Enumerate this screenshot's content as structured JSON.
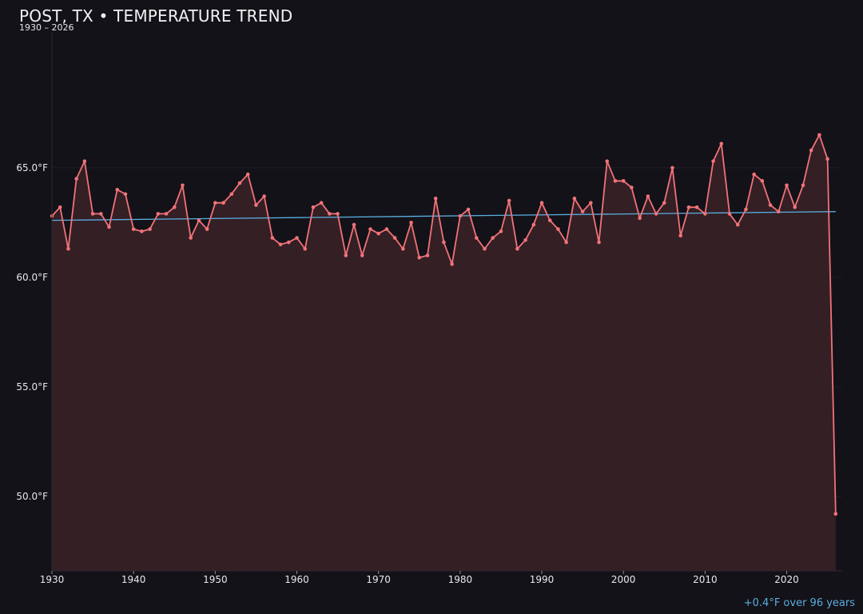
{
  "title": "POST, TX • TEMPERATURE TREND",
  "subtitle": "1930 – 2026",
  "trend_note": "+0.4°F over 96 years",
  "colors": {
    "background": "#131218",
    "series_line": "#f07378",
    "series_fill": "#341f25",
    "trend_line": "#5aaee0",
    "grid": "#221f26"
  },
  "chart_data": {
    "type": "line",
    "title": "POST, TX • TEMPERATURE TREND",
    "subtitle": "1930 – 2026",
    "xlabel": "",
    "ylabel": "",
    "xlim": [
      1930,
      2026.8
    ],
    "ylim": [
      46.6,
      71.2
    ],
    "y_ticks": [
      50.0,
      55.0,
      60.0,
      65.0
    ],
    "y_tick_labels": [
      "50.0°F",
      "55.0°F",
      "60.0°F",
      "65.0°F"
    ],
    "x_ticks": [
      1930,
      1940,
      1950,
      1960,
      1970,
      1980,
      1990,
      2000,
      2010,
      2020
    ],
    "x_tick_labels": [
      "1930",
      "1940",
      "1950",
      "1960",
      "1970",
      "1980",
      "1990",
      "2000",
      "2010",
      "2020"
    ],
    "grid": true,
    "area_fill": true,
    "x": [
      1930,
      1931,
      1932,
      1933,
      1934,
      1935,
      1936,
      1937,
      1938,
      1939,
      1940,
      1941,
      1942,
      1943,
      1944,
      1945,
      1946,
      1947,
      1948,
      1949,
      1950,
      1951,
      1952,
      1953,
      1954,
      1955,
      1956,
      1957,
      1958,
      1959,
      1960,
      1961,
      1962,
      1963,
      1964,
      1965,
      1966,
      1967,
      1968,
      1969,
      1970,
      1971,
      1972,
      1973,
      1974,
      1975,
      1976,
      1977,
      1978,
      1979,
      1980,
      1981,
      1982,
      1983,
      1984,
      1985,
      1986,
      1987,
      1988,
      1989,
      1990,
      1991,
      1992,
      1993,
      1994,
      1995,
      1996,
      1997,
      1998,
      1999,
      2000,
      2001,
      2002,
      2003,
      2004,
      2005,
      2006,
      2007,
      2008,
      2009,
      2010,
      2011,
      2012,
      2013,
      2014,
      2015,
      2016,
      2017,
      2018,
      2019,
      2020,
      2021,
      2022,
      2023,
      2024,
      2025,
      2026
    ],
    "series": [
      {
        "values": [
          62.8,
          63.2,
          61.3,
          64.5,
          65.3,
          62.9,
          62.9,
          62.3,
          64.0,
          63.8,
          62.2,
          62.1,
          62.2,
          62.9,
          62.9,
          63.2,
          64.2,
          61.8,
          62.6,
          62.2,
          63.4,
          63.4,
          63.8,
          64.3,
          64.7,
          63.3,
          63.7,
          61.8,
          61.5,
          61.6,
          61.8,
          61.3,
          63.2,
          63.4,
          62.9,
          62.9,
          61.0,
          62.4,
          61.0,
          62.2,
          62.0,
          62.2,
          61.8,
          61.3,
          62.5,
          60.9,
          61.0,
          63.6,
          61.6,
          60.6,
          62.8,
          63.1,
          61.8,
          61.3,
          61.8,
          62.1,
          63.5,
          61.3,
          61.7,
          62.4,
          63.4,
          62.6,
          62.2,
          61.6,
          63.6,
          63.0,
          63.4,
          61.6,
          65.3,
          64.4,
          64.4,
          64.1,
          62.7,
          63.7,
          62.9,
          63.4,
          65.0,
          61.9,
          63.2,
          63.2,
          62.9,
          65.3,
          66.1,
          62.9,
          62.4,
          63.1,
          64.7,
          64.4,
          63.3,
          63.0,
          64.2,
          63.2,
          64.2,
          65.8,
          66.5,
          65.4,
          49.2
        ]
      }
    ],
    "trend_line": {
      "start": [
        1930,
        62.6
      ],
      "end": [
        2026,
        63.0
      ]
    },
    "annotations": [
      "+0.4°F over 96 years"
    ]
  }
}
